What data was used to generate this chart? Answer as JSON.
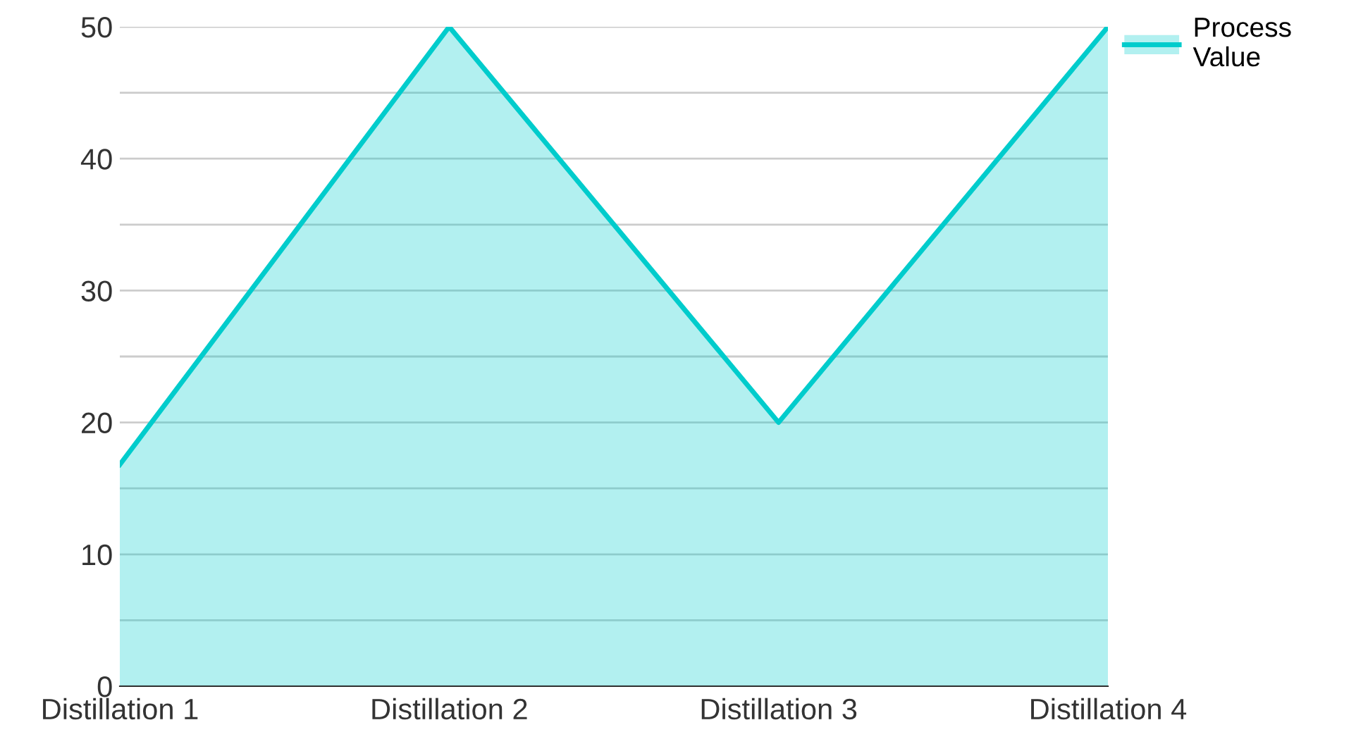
{
  "chart_data": {
    "type": "area",
    "categories": [
      "Distillation 1",
      "Distillation 2",
      "Distillation 3",
      "Distillation 4"
    ],
    "series": [
      {
        "name": "Process Value",
        "color": "#00cccc",
        "values": [
          16.8,
          50,
          20,
          50
        ]
      }
    ],
    "ylim": [
      0,
      50
    ],
    "yticks": [
      0,
      {
        "value": 5,
        "label": null
      },
      10,
      {
        "value": 15,
        "label": null
      },
      20,
      {
        "value": 25,
        "label": null
      },
      30,
      {
        "value": 35,
        "label": null
      },
      40,
      {
        "value": 45,
        "label": null
      },
      50
    ],
    "grid": "y",
    "legend": "top right"
  }
}
